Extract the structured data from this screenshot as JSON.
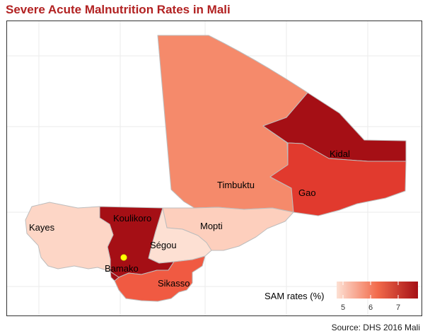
{
  "title": "Severe Acute Malnutrition Rates in Mali",
  "source": "Source: DHS 2016 Mali",
  "legend": {
    "title": "SAM rates (%)",
    "ticks": [
      "5",
      "6",
      "7"
    ],
    "low_color": "#fde0d3",
    "mid_color": "#f26b4b",
    "high_color": "#a50f15"
  },
  "regions": [
    {
      "key": "kidal",
      "label": "Kidal",
      "color": "#a50f15"
    },
    {
      "key": "gao",
      "label": "Gao",
      "color": "#e13a2e"
    },
    {
      "key": "timbuktu",
      "label": "Timbuktu",
      "color": "#f58a6b"
    },
    {
      "key": "koulikoro",
      "label": "Koulikoro",
      "color": "#a50f15"
    },
    {
      "key": "kayes",
      "label": "Kayes",
      "color": "#fdd6c6"
    },
    {
      "key": "mopti",
      "label": "Mopti",
      "color": "#fdcfbd"
    },
    {
      "key": "segou",
      "label": "Ségou",
      "color": "#fde0d3"
    },
    {
      "key": "bamako",
      "label": "Bamako",
      "color": "#a50f15"
    },
    {
      "key": "sikasso",
      "label": "Sikasso",
      "color": "#f05a42"
    }
  ],
  "marker_color": "#ffff00"
}
